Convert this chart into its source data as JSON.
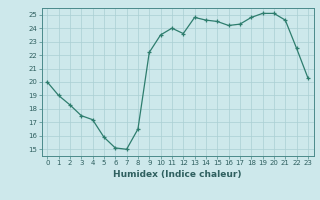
{
  "x": [
    0,
    1,
    2,
    3,
    4,
    5,
    6,
    7,
    8,
    9,
    10,
    11,
    12,
    13,
    14,
    15,
    16,
    17,
    18,
    19,
    20,
    21,
    22,
    23
  ],
  "y": [
    20.0,
    19.0,
    18.3,
    17.5,
    17.2,
    15.9,
    15.1,
    15.0,
    16.5,
    22.2,
    23.5,
    24.0,
    23.6,
    24.8,
    24.6,
    24.5,
    24.2,
    24.3,
    24.8,
    25.1,
    25.1,
    24.6,
    22.5,
    20.3
  ],
  "xlabel": "Humidex (Indice chaleur)",
  "ylabel": "",
  "title": "",
  "xlim": [
    -0.5,
    23.5
  ],
  "ylim": [
    14.5,
    25.5
  ],
  "yticks": [
    15,
    16,
    17,
    18,
    19,
    20,
    21,
    22,
    23,
    24,
    25
  ],
  "xticks": [
    0,
    1,
    2,
    3,
    4,
    5,
    6,
    7,
    8,
    9,
    10,
    11,
    12,
    13,
    14,
    15,
    16,
    17,
    18,
    19,
    20,
    21,
    22,
    23
  ],
  "line_color": "#2e7d6e",
  "marker_color": "#2e7d6e",
  "bg_color": "#cde8eb",
  "grid_color": "#aacfd4",
  "text_color": "#2e5f5f",
  "spine_color": "#4a8a8a"
}
